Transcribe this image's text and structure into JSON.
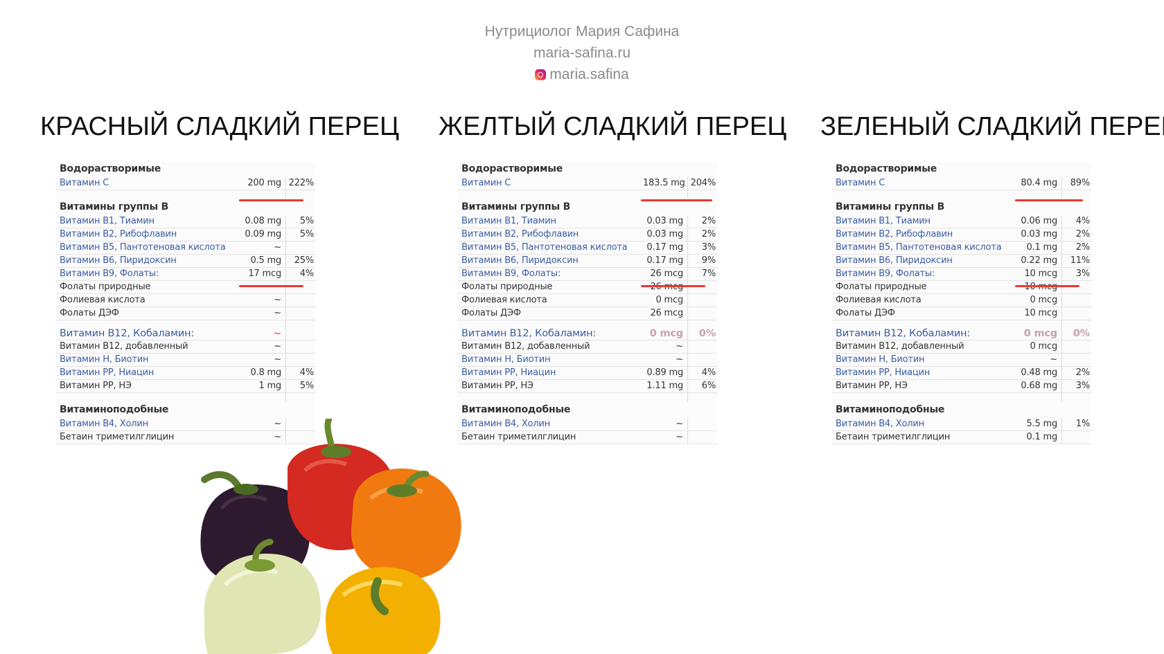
{
  "header": {
    "author": "Нутрициолог Мария Сафина",
    "site": "maria-safina.ru",
    "instagram": "maria.safina"
  },
  "columns": [
    {
      "title": "КРАСНЫЙ СЛАДКИЙ ПЕРЕЦ",
      "water_title": "Водорастворимые",
      "vit_c": {
        "name": "Витамин С",
        "value": "200 mg",
        "pct": "222%"
      },
      "b_title": "Витамины группы В",
      "b_rows": [
        {
          "name": "Витамин В1, Тиамин",
          "value": "0.08 mg",
          "pct": "5%",
          "link": true
        },
        {
          "name": "Витамин В2, Рибофлавин",
          "value": "0.09 mg",
          "pct": "5%",
          "link": true
        },
        {
          "name": "Витамин В5, Пантотеновая кислота",
          "value": "~",
          "pct": "",
          "link": true
        },
        {
          "name": "Витамин В6, Пиридоксин",
          "value": "0.5 mg",
          "pct": "25%",
          "link": true
        },
        {
          "name": "Витамин В9, Фолаты:",
          "value": "17 mcg",
          "pct": "4%",
          "link": true
        },
        {
          "name": "Фолаты природные",
          "value": "~",
          "pct": "",
          "link": false
        },
        {
          "name": "Фолиевая кислота",
          "value": "~",
          "pct": "",
          "link": false
        },
        {
          "name": "Фолаты ДЭФ",
          "value": "~",
          "pct": "",
          "link": false
        }
      ],
      "b12": {
        "name": "Витамин В12, Кобаламин:",
        "value": "~",
        "pct": ""
      },
      "b12_rows": [
        {
          "name": "Витамин В12, добавленный",
          "value": "~",
          "pct": "",
          "link": false
        },
        {
          "name": "Витамин Н, Биотин",
          "value": "~",
          "pct": "",
          "link": true
        },
        {
          "name": "Витамин РР, Ниацин",
          "value": "0.8 mg",
          "pct": "4%",
          "link": true
        },
        {
          "name": "Витамин РР, НЭ",
          "value": "1 mg",
          "pct": "5%",
          "link": false
        }
      ],
      "like_title": "Витаминоподобные",
      "like_rows": [
        {
          "name": "Витамин В4, Холин",
          "value": "~",
          "pct": "",
          "link": true
        },
        {
          "name": "Бетаин триметилглицин",
          "value": "~",
          "pct": "",
          "link": false
        }
      ]
    },
    {
      "title": "ЖЕЛТЫЙ СЛАДКИЙ ПЕРЕЦ",
      "water_title": "Водорастворимые",
      "vit_c": {
        "name": "Витамин С",
        "value": "183.5 mg",
        "pct": "204%"
      },
      "b_title": "Витамины группы В",
      "b_rows": [
        {
          "name": "Витамин В1, Тиамин",
          "value": "0.03 mg",
          "pct": "2%",
          "link": true
        },
        {
          "name": "Витамин В2, Рибофлавин",
          "value": "0.03 mg",
          "pct": "2%",
          "link": true
        },
        {
          "name": "Витамин В5, Пантотеновая кислота",
          "value": "0.17 mg",
          "pct": "3%",
          "link": true
        },
        {
          "name": "Витамин В6, Пиридоксин",
          "value": "0.17 mg",
          "pct": "9%",
          "link": true
        },
        {
          "name": "Витамин В9, Фолаты:",
          "value": "26 mcg",
          "pct": "7%",
          "link": true
        },
        {
          "name": "Фолаты природные",
          "value": "26 mcg",
          "pct": "",
          "link": false
        },
        {
          "name": "Фолиевая кислота",
          "value": "0 mcg",
          "pct": "",
          "link": false
        },
        {
          "name": "Фолаты ДЭФ",
          "value": "26 mcg",
          "pct": "",
          "link": false
        }
      ],
      "b12": {
        "name": "Витамин В12, Кобаламин:",
        "value": "0 mcg",
        "pct": "0%"
      },
      "b12_rows": [
        {
          "name": "Витамин В12, добавленный",
          "value": "~",
          "pct": "",
          "link": false
        },
        {
          "name": "Витамин Н, Биотин",
          "value": "~",
          "pct": "",
          "link": true
        },
        {
          "name": "Витамин РР, Ниацин",
          "value": "0.89 mg",
          "pct": "4%",
          "link": true
        },
        {
          "name": "Витамин РР, НЭ",
          "value": "1.11 mg",
          "pct": "6%",
          "link": false
        }
      ],
      "like_title": "Витаминоподобные",
      "like_rows": [
        {
          "name": "Витамин В4, Холин",
          "value": "~",
          "pct": "",
          "link": true
        },
        {
          "name": "Бетаин триметилглицин",
          "value": "~",
          "pct": "",
          "link": false
        }
      ]
    },
    {
      "title": "ЗЕЛЕНЫЙ СЛАДКИЙ ПЕРЕЦ",
      "water_title": "Водорастворимые",
      "vit_c": {
        "name": "Витамин С",
        "value": "80.4 mg",
        "pct": "89%"
      },
      "b_title": "Витамины группы В",
      "b_rows": [
        {
          "name": "Витамин В1, Тиамин",
          "value": "0.06 mg",
          "pct": "4%",
          "link": true
        },
        {
          "name": "Витамин В2, Рибофлавин",
          "value": "0.03 mg",
          "pct": "2%",
          "link": true
        },
        {
          "name": "Витамин В5, Пантотеновая кислота",
          "value": "0.1 mg",
          "pct": "2%",
          "link": true
        },
        {
          "name": "Витамин В6, Пиридоксин",
          "value": "0.22 mg",
          "pct": "11%",
          "link": true
        },
        {
          "name": "Витамин В9, Фолаты:",
          "value": "10 mcg",
          "pct": "3%",
          "link": true
        },
        {
          "name": "Фолаты природные",
          "value": "10 mcg",
          "pct": "",
          "link": false
        },
        {
          "name": "Фолиевая кислота",
          "value": "0 mcg",
          "pct": "",
          "link": false
        },
        {
          "name": "Фолаты ДЭФ",
          "value": "10 mcg",
          "pct": "",
          "link": false
        }
      ],
      "b12": {
        "name": "Витамин В12, Кобаламин:",
        "value": "0 mcg",
        "pct": "0%"
      },
      "b12_rows": [
        {
          "name": "Витамин В12, добавленный",
          "value": "0 mcg",
          "pct": "",
          "link": false
        },
        {
          "name": "Витамин Н, Биотин",
          "value": "~",
          "pct": "",
          "link": true
        },
        {
          "name": "Витамин РР, Ниацин",
          "value": "0.48 mg",
          "pct": "2%",
          "link": true
        },
        {
          "name": "Витамин РР, НЭ",
          "value": "0.68 mg",
          "pct": "3%",
          "link": false
        }
      ],
      "like_title": "Витаминоподобные",
      "like_rows": [
        {
          "name": "Витамин В4, Холин",
          "value": "5.5 mg",
          "pct": "1%",
          "link": true
        },
        {
          "name": "Бетаин триметилглицин",
          "value": "0.1 mg",
          "pct": "",
          "link": false
        }
      ]
    }
  ],
  "colors": {
    "accent_red": "#e53935",
    "link_blue": "#3b5ba3"
  }
}
